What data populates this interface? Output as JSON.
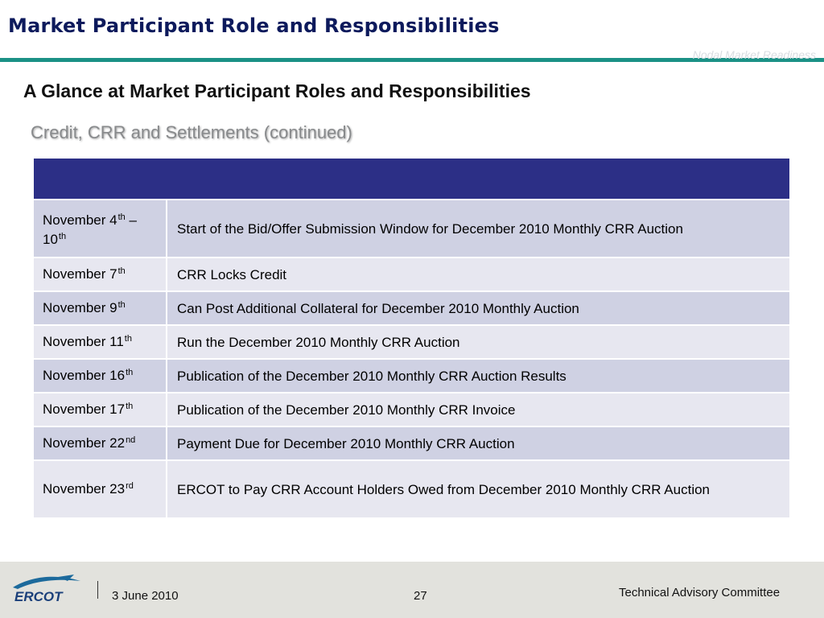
{
  "header": {
    "title": "Market Participant Role and Responsibilities",
    "tag": "Nodal Market Readiness"
  },
  "subtitle": "A Glance at Market Participant Roles and Responsibilities",
  "section": "Credit, CRR  and  Settlements (continued)",
  "table": {
    "rows": [
      {
        "date": "November 4",
        "sup": "th",
        "date_tail": " –",
        "date_line2": "10",
        "sup2": "th",
        "desc": "Start of the Bid/Offer Submission Window for December 2010 Monthly CRR Auction"
      },
      {
        "date": "November 7",
        "sup": "th",
        "desc": "CRR Locks Credit"
      },
      {
        "date": "November 9",
        "sup": "th",
        "desc": "Can Post Additional Collateral for December 2010 Monthly Auction"
      },
      {
        "date": "November 11",
        "sup": "th",
        "desc": "Run the December 2010 Monthly CRR Auction"
      },
      {
        "date": "November 16",
        "sup": "th",
        "desc": "Publication of the December 2010 Monthly CRR Auction Results"
      },
      {
        "date": "November 17",
        "sup": "th",
        "desc": "Publication of the December 2010 Monthly CRR Invoice"
      },
      {
        "date": "November 22",
        "sup": "nd",
        "desc": "Payment Due for December 2010 Monthly CRR Auction"
      },
      {
        "date": "November 23",
        "sup": "rd",
        "desc": "ERCOT to Pay CRR Account Holders Owed from December 2010 Monthly CRR Auction"
      }
    ]
  },
  "footer": {
    "logo_text": "ERCOT",
    "date": "3 June 2010",
    "page": "27",
    "committee": "Technical Advisory Committee"
  },
  "colors": {
    "title": "#0d1a5c",
    "rule": "#1b9186",
    "table_header": "#2c2f86",
    "row_odd": "#cfd1e3",
    "row_even": "#e7e7f0",
    "footer_bg": "#e2e2dd"
  }
}
